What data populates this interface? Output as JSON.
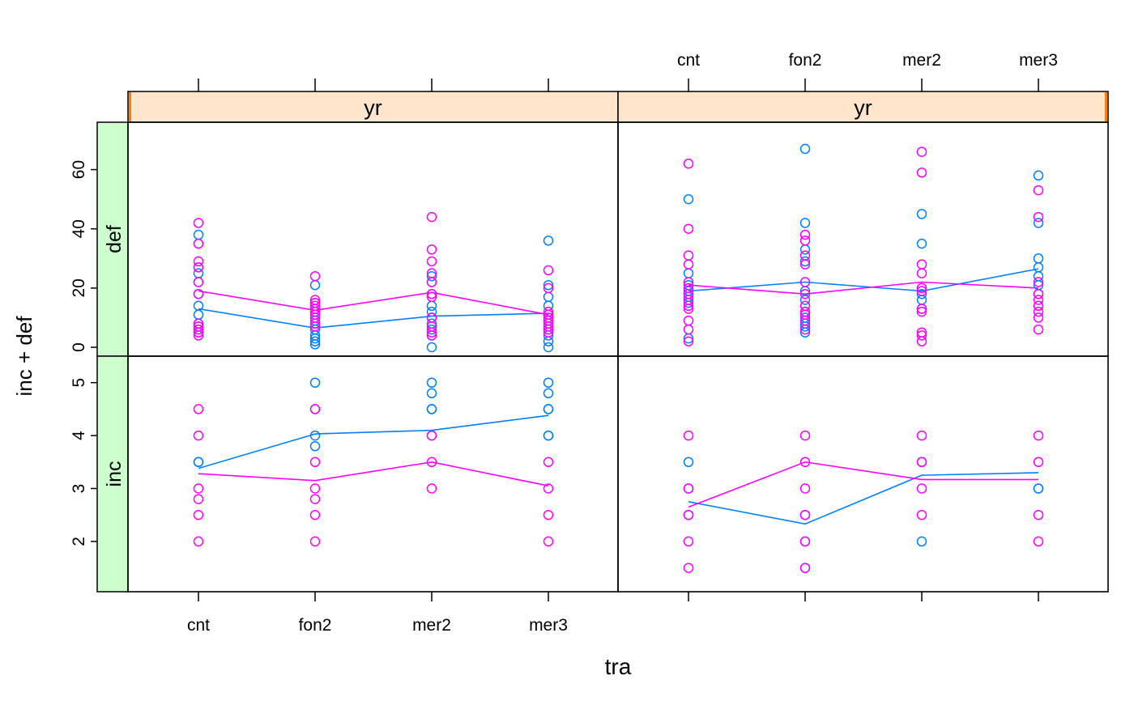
{
  "chart_data": {
    "type": "scatter",
    "layout": "lattice 2x2 panels with group mean lines",
    "xlabel": "tra",
    "ylabel": "inc + def",
    "categories": [
      "cnt",
      "fon2",
      "mer2",
      "mer3"
    ],
    "column_strips": [
      "yr",
      "yr"
    ],
    "row_strips": [
      "def",
      "inc"
    ],
    "series_colors": {
      "blue": "#0080ff",
      "magenta": "#ff00ff"
    },
    "strip_colors": {
      "top": "#ffe5cc",
      "side": "#ccffcc",
      "marker": "#ff7f00"
    },
    "panels": [
      {
        "row": "def",
        "column": 1,
        "ylim": [
          -3,
          76
        ],
        "yticks": [
          0,
          20,
          40,
          60
        ],
        "series": [
          {
            "color": "#0080ff",
            "points": [
              [
                1,
                38
              ],
              [
                1,
                35
              ],
              [
                1,
                27
              ],
              [
                1,
                25
              ],
              [
                1,
                22
              ],
              [
                1,
                18
              ],
              [
                1,
                14
              ],
              [
                1,
                11
              ],
              [
                1,
                8
              ],
              [
                1,
                7
              ],
              [
                1,
                6
              ],
              [
                1,
                5
              ],
              [
                2,
                21
              ],
              [
                2,
                15
              ],
              [
                2,
                12
              ],
              [
                2,
                9
              ],
              [
                2,
                7
              ],
              [
                2,
                6
              ],
              [
                2,
                4
              ],
              [
                2,
                3
              ],
              [
                2,
                2
              ],
              [
                2,
                1
              ],
              [
                3,
                24
              ],
              [
                3,
                22
              ],
              [
                3,
                18
              ],
              [
                3,
                14
              ],
              [
                3,
                12
              ],
              [
                3,
                10
              ],
              [
                3,
                8
              ],
              [
                3,
                6
              ],
              [
                3,
                4
              ],
              [
                3,
                0
              ],
              [
                4,
                36
              ],
              [
                4,
                21
              ],
              [
                4,
                17
              ],
              [
                4,
                14
              ],
              [
                4,
                11
              ],
              [
                4,
                9
              ],
              [
                4,
                6
              ],
              [
                4,
                4
              ],
              [
                4,
                2
              ],
              [
                4,
                0
              ]
            ],
            "mean": [
              13,
              6.5,
              10.5,
              11.5
            ]
          },
          {
            "color": "#ff00ff",
            "points": [
              [
                1,
                42
              ],
              [
                1,
                35
              ],
              [
                1,
                29
              ],
              [
                1,
                27
              ],
              [
                1,
                22
              ],
              [
                1,
                18
              ],
              [
                1,
                8
              ],
              [
                1,
                7
              ],
              [
                1,
                6
              ],
              [
                1,
                5
              ],
              [
                1,
                4
              ],
              [
                2,
                24
              ],
              [
                2,
                16
              ],
              [
                2,
                15
              ],
              [
                2,
                14
              ],
              [
                2,
                13
              ],
              [
                2,
                12
              ],
              [
                2,
                11
              ],
              [
                2,
                10
              ],
              [
                2,
                8
              ],
              [
                2,
                7
              ],
              [
                3,
                44
              ],
              [
                3,
                33
              ],
              [
                3,
                29
              ],
              [
                3,
                25
              ],
              [
                3,
                22
              ],
              [
                3,
                18
              ],
              [
                3,
                17
              ],
              [
                3,
                10
              ],
              [
                3,
                7
              ],
              [
                3,
                5
              ],
              [
                3,
                4
              ],
              [
                4,
                26
              ],
              [
                4,
                20
              ],
              [
                4,
                12
              ],
              [
                4,
                11
              ],
              [
                4,
                10
              ],
              [
                4,
                9
              ],
              [
                4,
                8
              ],
              [
                4,
                7
              ],
              [
                4,
                6
              ],
              [
                4,
                5
              ]
            ],
            "mean": [
              19,
              12.5,
              18.5,
              11
            ]
          }
        ]
      },
      {
        "row": "def",
        "column": 2,
        "ylim": [
          -3,
          76
        ],
        "yticks": [
          0,
          20,
          40,
          60
        ],
        "series": [
          {
            "color": "#0080ff",
            "points": [
              [
                1,
                50
              ],
              [
                1,
                25
              ],
              [
                1,
                21
              ],
              [
                1,
                19
              ],
              [
                1,
                18
              ],
              [
                1,
                17
              ],
              [
                1,
                15
              ],
              [
                1,
                3
              ],
              [
                2,
                67
              ],
              [
                2,
                42
              ],
              [
                2,
                33
              ],
              [
                2,
                29
              ],
              [
                2,
                19
              ],
              [
                2,
                16
              ],
              [
                2,
                12
              ],
              [
                2,
                10
              ],
              [
                2,
                8
              ],
              [
                2,
                7
              ],
              [
                2,
                5
              ],
              [
                3,
                45
              ],
              [
                3,
                35
              ],
              [
                3,
                20
              ],
              [
                3,
                18
              ],
              [
                3,
                16
              ],
              [
                3,
                13
              ],
              [
                4,
                58
              ],
              [
                4,
                42
              ],
              [
                4,
                30
              ],
              [
                4,
                27
              ],
              [
                4,
                24
              ],
              [
                4,
                21
              ],
              [
                4,
                18
              ],
              [
                4,
                14
              ]
            ],
            "mean": [
              19,
              22,
              19,
              26.5
            ]
          },
          {
            "color": "#ff00ff",
            "points": [
              [
                1,
                62
              ],
              [
                1,
                40
              ],
              [
                1,
                31
              ],
              [
                1,
                28
              ],
              [
                1,
                22
              ],
              [
                1,
                20
              ],
              [
                1,
                18
              ],
              [
                1,
                16
              ],
              [
                1,
                14
              ],
              [
                1,
                13
              ],
              [
                1,
                9
              ],
              [
                1,
                6
              ],
              [
                1,
                2
              ],
              [
                2,
                38
              ],
              [
                2,
                36
              ],
              [
                2,
                31
              ],
              [
                2,
                28
              ],
              [
                2,
                22
              ],
              [
                2,
                18
              ],
              [
                2,
                14
              ],
              [
                2,
                12
              ],
              [
                2,
                11
              ],
              [
                2,
                9
              ],
              [
                2,
                6
              ],
              [
                3,
                66
              ],
              [
                3,
                59
              ],
              [
                3,
                28
              ],
              [
                3,
                25
              ],
              [
                3,
                20
              ],
              [
                3,
                19
              ],
              [
                3,
                13
              ],
              [
                3,
                12
              ],
              [
                3,
                5
              ],
              [
                3,
                4
              ],
              [
                3,
                2
              ],
              [
                4,
                53
              ],
              [
                4,
                44
              ],
              [
                4,
                22
              ],
              [
                4,
                18
              ],
              [
                4,
                16
              ],
              [
                4,
                14
              ],
              [
                4,
                12
              ],
              [
                4,
                10
              ],
              [
                4,
                6
              ]
            ],
            "mean": [
              21,
              18,
              22,
              20
            ]
          }
        ]
      },
      {
        "row": "inc",
        "column": 1,
        "ylim": [
          1.05,
          5.5
        ],
        "yticks": [
          2,
          3,
          4,
          5
        ],
        "series": [
          {
            "color": "#0080ff",
            "points": [
              [
                1,
                3.5
              ],
              [
                1,
                3.5
              ],
              [
                2,
                5.0
              ],
              [
                2,
                4.5
              ],
              [
                2,
                4.0
              ],
              [
                2,
                3.8
              ],
              [
                3,
                5.0
              ],
              [
                3,
                4.8
              ],
              [
                3,
                4.5
              ],
              [
                3,
                4.5
              ],
              [
                3,
                4.0
              ],
              [
                4,
                5.0
              ],
              [
                4,
                4.8
              ],
              [
                4,
                4.5
              ],
              [
                4,
                4.5
              ],
              [
                4,
                4.0
              ],
              [
                4,
                4.0
              ]
            ],
            "mean": [
              3.38,
              4.03,
              4.1,
              4.38
            ]
          },
          {
            "color": "#ff00ff",
            "points": [
              [
                1,
                4.5
              ],
              [
                1,
                4.0
              ],
              [
                1,
                3.0
              ],
              [
                1,
                2.8
              ],
              [
                1,
                2.5
              ],
              [
                1,
                2.0
              ],
              [
                2,
                4.5
              ],
              [
                2,
                3.5
              ],
              [
                2,
                3.0
              ],
              [
                2,
                2.8
              ],
              [
                2,
                2.5
              ],
              [
                2,
                2.0
              ],
              [
                3,
                4.0
              ],
              [
                3,
                3.5
              ],
              [
                3,
                3.0
              ],
              [
                4,
                3.5
              ],
              [
                4,
                3.0
              ],
              [
                4,
                2.5
              ],
              [
                4,
                2.0
              ]
            ],
            "mean": [
              3.28,
              3.15,
              3.5,
              3.05
            ]
          }
        ]
      },
      {
        "row": "inc",
        "column": 2,
        "ylim": [
          1.05,
          5.5
        ],
        "yticks": [
          2,
          3,
          4,
          5
        ],
        "series": [
          {
            "color": "#0080ff",
            "points": [
              [
                1,
                3.5
              ],
              [
                1,
                3.0
              ],
              [
                1,
                2.5
              ],
              [
                2,
                2.5
              ],
              [
                2,
                2.0
              ],
              [
                2,
                1.5
              ],
              [
                3,
                3.5
              ],
              [
                3,
                2.0
              ],
              [
                4,
                3.0
              ],
              [
                4,
                3.0
              ]
            ],
            "mean": [
              2.75,
              2.33,
              3.25,
              3.3
            ]
          },
          {
            "color": "#ff00ff",
            "points": [
              [
                1,
                4.0
              ],
              [
                1,
                3.0
              ],
              [
                1,
                2.5
              ],
              [
                1,
                2.0
              ],
              [
                1,
                1.5
              ],
              [
                2,
                4.0
              ],
              [
                2,
                3.5
              ],
              [
                2,
                3.0
              ],
              [
                2,
                2.5
              ],
              [
                2,
                2.0
              ],
              [
                2,
                1.5
              ],
              [
                3,
                4.0
              ],
              [
                3,
                3.5
              ],
              [
                3,
                3.0
              ],
              [
                3,
                2.5
              ],
              [
                4,
                4.0
              ],
              [
                4,
                3.5
              ],
              [
                4,
                2.5
              ],
              [
                4,
                2.0
              ]
            ],
            "mean": [
              2.65,
              3.5,
              3.17,
              3.17
            ]
          }
        ]
      }
    ]
  }
}
